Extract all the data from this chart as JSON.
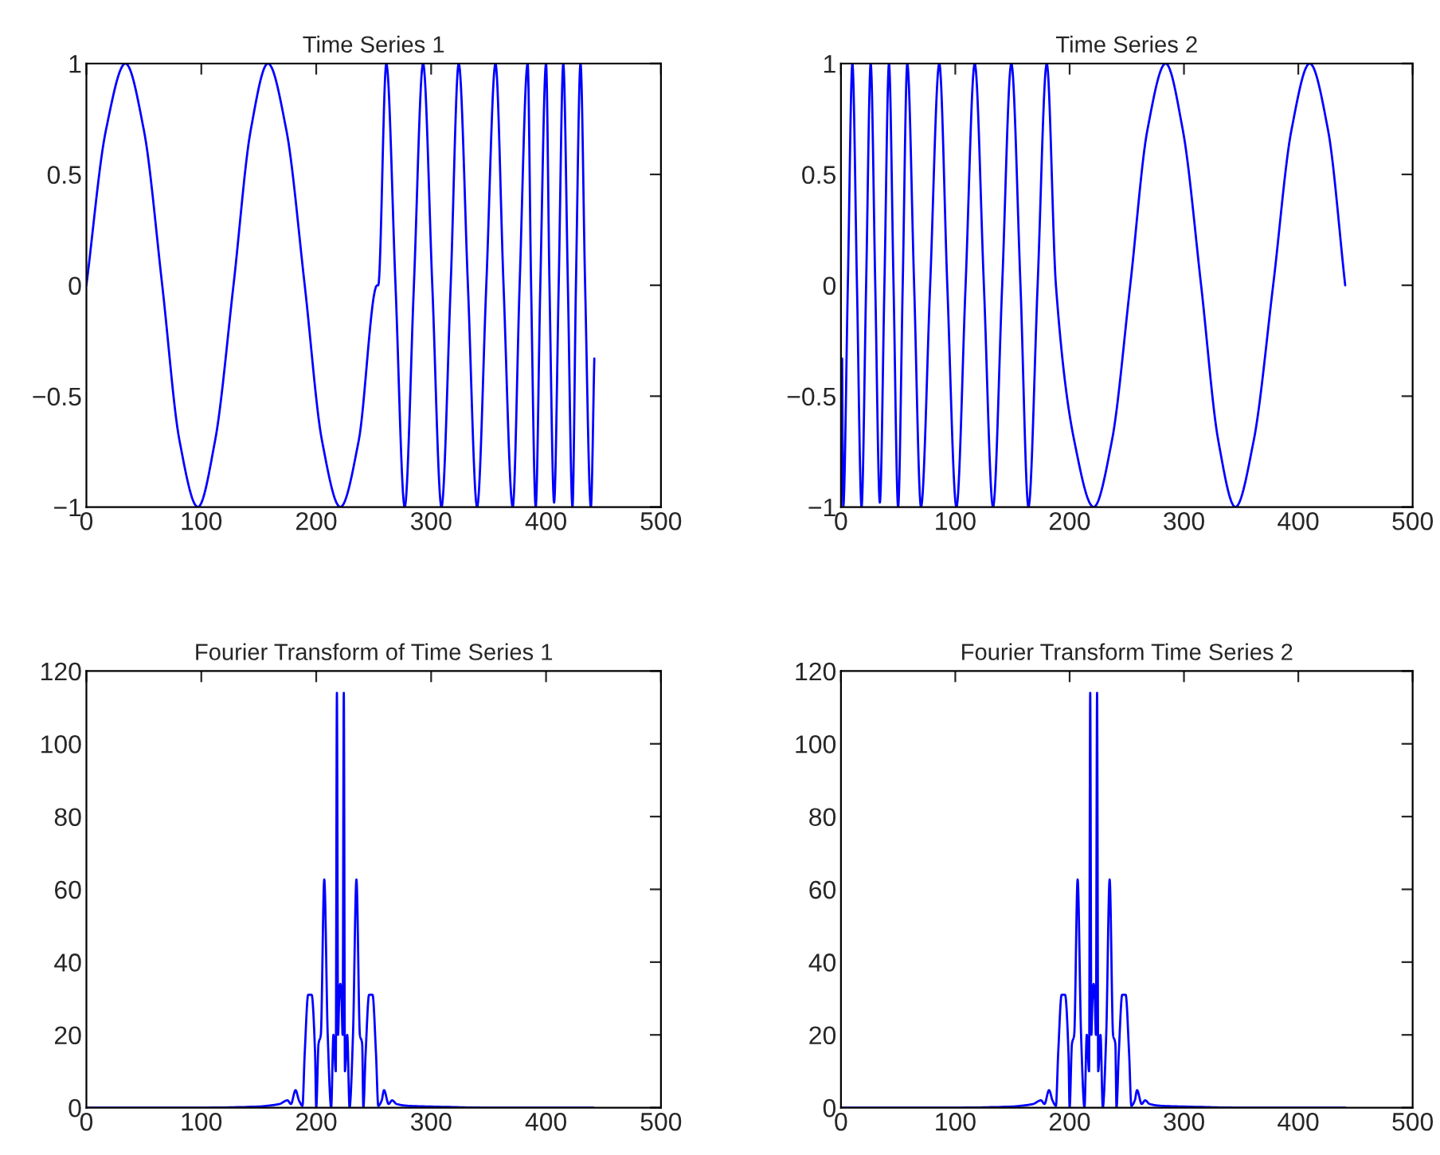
{
  "chart_data": [
    {
      "type": "line",
      "title": "Time Series 1",
      "xlim": [
        0,
        500
      ],
      "ylim": [
        -1,
        1
      ],
      "xticks": [
        0,
        100,
        200,
        300,
        400,
        500
      ],
      "yticks": [
        -1,
        -0.5,
        0,
        0.5,
        1
      ],
      "grid": false,
      "legend": false,
      "series": [
        {
          "color": "#0000ff",
          "x": [
            0,
            17,
            34,
            50,
            66,
            81,
            97,
            112,
            128,
            143,
            158,
            174,
            190,
            205,
            221,
            237,
            253,
            254,
            261,
            269,
            277,
            285,
            293,
            301,
            309,
            317,
            324,
            332,
            340,
            348,
            356,
            363,
            371,
            377,
            384,
            387,
            391,
            395,
            400,
            403,
            407,
            411,
            415,
            419,
            423,
            426,
            430,
            434,
            439,
            442
          ],
          "values": [
            0,
            0.7,
            1,
            0.7,
            0,
            -0.7,
            -1,
            -0.7,
            0,
            0.7,
            1,
            0.7,
            0,
            -0.7,
            -1,
            -0.7,
            0,
            0,
            1,
            0,
            -1,
            0,
            1,
            0,
            -1,
            0,
            1,
            0,
            -1,
            0,
            1,
            0,
            -1,
            0,
            1,
            0,
            -1,
            0,
            1,
            0,
            -0.98,
            0,
            1,
            0,
            -1,
            0,
            1,
            0,
            -1,
            -0.33
          ]
        }
      ]
    },
    {
      "type": "line",
      "title": "Time Series 2",
      "xlim": [
        0,
        500
      ],
      "ylim": [
        -1,
        1
      ],
      "xticks": [
        0,
        100,
        200,
        300,
        400,
        500
      ],
      "yticks": [
        -1,
        -0.5,
        0,
        0.5,
        1
      ],
      "grid": false,
      "legend": false,
      "series": [
        {
          "color": "#0000ff",
          "x": [
            1,
            2,
            6,
            10,
            14,
            18,
            22,
            26,
            30,
            34,
            38,
            42,
            46,
            50,
            54,
            58,
            64,
            70,
            78,
            86,
            93,
            101,
            109,
            117,
            125,
            133,
            141,
            149,
            157,
            164,
            172,
            180,
            188,
            204,
            221,
            237,
            253,
            268,
            284,
            299,
            315,
            330,
            345,
            361,
            378,
            394,
            410,
            426,
            441
          ],
          "values": [
            -0.33,
            -1,
            0,
            1,
            0,
            -1,
            0,
            1,
            0,
            -0.98,
            0,
            1,
            0,
            -1,
            0,
            1,
            0,
            -1,
            0,
            1,
            0,
            -1,
            0,
            1,
            0,
            -1,
            0,
            1,
            0,
            -1,
            0,
            1,
            0,
            -0.7,
            -1,
            -0.7,
            0,
            0.7,
            1,
            0.7,
            0,
            -0.7,
            -1,
            -0.7,
            0,
            0.7,
            1,
            0.7,
            0
          ]
        }
      ]
    },
    {
      "type": "line",
      "title": "Fourier Transform of Time Series 1",
      "xlim": [
        0,
        500
      ],
      "ylim": [
        0,
        120
      ],
      "xticks": [
        0,
        100,
        200,
        300,
        400,
        500
      ],
      "yticks": [
        0,
        20,
        40,
        60,
        80,
        100,
        120
      ],
      "grid": false,
      "legend": false,
      "series": [
        {
          "color": "#0000ff",
          "x": [
            1,
            100,
            150,
            160,
            168,
            175,
            178,
            182,
            185,
            188,
            190,
            193,
            196,
            199,
            200,
            202,
            204,
            207,
            210,
            213,
            215,
            217,
            218,
            219,
            220,
            221,
            222,
            223,
            224,
            225,
            227,
            229,
            232,
            235,
            238,
            240,
            241,
            243,
            246,
            249,
            252,
            254,
            257,
            259,
            263,
            266,
            270,
            280,
            300,
            350,
            441
          ],
          "values": [
            0,
            0,
            0.3,
            0.6,
            1,
            2,
            1,
            4.8,
            2,
            0.5,
            15,
            31,
            31,
            15,
            0,
            17.5,
            20,
            62.7,
            20,
            0,
            20,
            10,
            114,
            20,
            30,
            34,
            30,
            20,
            114,
            10,
            20,
            0,
            20,
            62.7,
            20,
            17.5,
            0,
            15,
            31,
            31,
            15,
            0.5,
            2,
            4.8,
            1,
            2,
            1,
            0.5,
            0.3,
            0,
            0
          ]
        }
      ]
    },
    {
      "type": "line",
      "title": "Fourier Transform Time Series 2",
      "xlim": [
        0,
        500
      ],
      "ylim": [
        0,
        120
      ],
      "xticks": [
        0,
        100,
        200,
        300,
        400,
        500
      ],
      "yticks": [
        0,
        20,
        40,
        60,
        80,
        100,
        120
      ],
      "grid": false,
      "legend": false,
      "series": [
        {
          "color": "#0000ff",
          "x": [
            1,
            100,
            150,
            160,
            168,
            175,
            178,
            182,
            185,
            188,
            190,
            193,
            196,
            199,
            200,
            202,
            204,
            207,
            210,
            213,
            215,
            217,
            218,
            219,
            220,
            221,
            222,
            223,
            224,
            225,
            227,
            229,
            232,
            235,
            238,
            240,
            241,
            243,
            246,
            249,
            252,
            254,
            257,
            259,
            263,
            266,
            270,
            280,
            300,
            350,
            441
          ],
          "values": [
            0,
            0,
            0.3,
            0.6,
            1,
            2,
            1,
            4.8,
            2,
            0.5,
            15,
            31,
            31,
            15,
            0,
            17.5,
            20,
            62.7,
            20,
            0,
            20,
            10,
            114,
            20,
            30,
            34,
            30,
            20,
            114,
            10,
            20,
            0,
            20,
            62.7,
            20,
            17.5,
            0,
            15,
            31,
            31,
            15,
            0.5,
            2,
            4.8,
            1,
            2,
            1,
            0.5,
            0.3,
            0,
            0
          ]
        }
      ]
    }
  ]
}
